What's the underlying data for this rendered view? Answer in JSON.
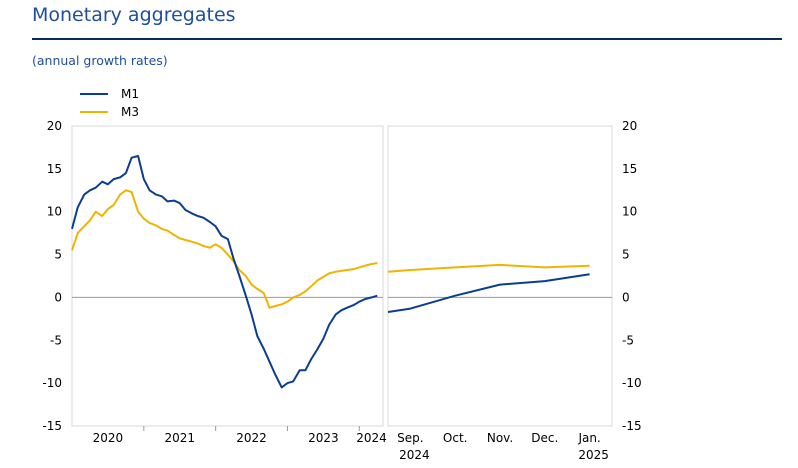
{
  "header": {
    "title": "Monetary aggregates",
    "subtitle": "(annual growth rates)"
  },
  "colors": {
    "M1": "#0b3d91",
    "M3": "#f0b400"
  },
  "chart_data": {
    "type": "line",
    "title": "Monetary aggregates",
    "subtitle": "(annual growth rates)",
    "ylim": [
      -15,
      20
    ],
    "yticks": [
      -15,
      -10,
      -5,
      0,
      5,
      10,
      15,
      20
    ],
    "ytick_labels": [
      "-15",
      "-10",
      "-5",
      "0",
      "5",
      "10",
      "15",
      "20"
    ],
    "legend": {
      "position": "top-left",
      "entries": [
        "M1",
        "M3"
      ]
    },
    "left_panel": {
      "x_range": [
        2020.0,
        2024.33
      ],
      "xtick_labels": [
        {
          "label": "2020",
          "x": 2020.5
        },
        {
          "label": "2021",
          "x": 2021.5
        },
        {
          "label": "2022",
          "x": 2022.5
        },
        {
          "label": "2023",
          "x": 2023.5
        },
        {
          "label": "2024",
          "x": 2024.17
        }
      ],
      "year_boundaries": [
        2021,
        2022,
        2023,
        2024
      ],
      "series": [
        {
          "name": "M1",
          "x": [
            2020.0,
            2020.08,
            2020.17,
            2020.25,
            2020.33,
            2020.42,
            2020.5,
            2020.58,
            2020.67,
            2020.75,
            2020.83,
            2020.92,
            2021.0,
            2021.08,
            2021.17,
            2021.25,
            2021.33,
            2021.42,
            2021.5,
            2021.58,
            2021.67,
            2021.75,
            2021.83,
            2021.92,
            2022.0,
            2022.08,
            2022.17,
            2022.25,
            2022.33,
            2022.42,
            2022.5,
            2022.58,
            2022.67,
            2022.75,
            2022.83,
            2022.92,
            2023.0,
            2023.08,
            2023.17,
            2023.25,
            2023.33,
            2023.42,
            2023.5,
            2023.58,
            2023.67,
            2023.75,
            2023.83,
            2023.92,
            2024.0,
            2024.08,
            2024.17,
            2024.25
          ],
          "values": [
            8.0,
            10.5,
            12.0,
            12.5,
            12.8,
            13.5,
            13.2,
            13.8,
            14.0,
            14.5,
            16.3,
            16.5,
            13.8,
            12.5,
            12.0,
            11.8,
            11.2,
            11.3,
            11.0,
            10.2,
            9.8,
            9.5,
            9.3,
            8.8,
            8.3,
            7.2,
            6.8,
            4.5,
            2.5,
            0.2,
            -2.0,
            -4.5,
            -6.0,
            -7.5,
            -9.0,
            -10.5,
            -10.0,
            -9.8,
            -8.5,
            -8.5,
            -7.2,
            -6.0,
            -4.8,
            -3.2,
            -2.0,
            -1.5,
            -1.2,
            -0.9,
            -0.5,
            -0.2,
            0.0,
            0.2
          ],
          "color": "#0b3d91"
        },
        {
          "name": "M3",
          "x": [
            2020.0,
            2020.08,
            2020.17,
            2020.25,
            2020.33,
            2020.42,
            2020.5,
            2020.58,
            2020.67,
            2020.75,
            2020.83,
            2020.92,
            2021.0,
            2021.08,
            2021.17,
            2021.25,
            2021.33,
            2021.42,
            2021.5,
            2021.58,
            2021.67,
            2021.75,
            2021.83,
            2021.92,
            2022.0,
            2022.08,
            2022.17,
            2022.25,
            2022.33,
            2022.42,
            2022.5,
            2022.58,
            2022.67,
            2022.75,
            2022.83,
            2022.92,
            2023.0,
            2023.08,
            2023.17,
            2023.25,
            2023.33,
            2023.42,
            2023.5,
            2023.58,
            2023.67,
            2023.75,
            2023.83,
            2023.92,
            2024.0,
            2024.08,
            2024.17,
            2024.25
          ],
          "values": [
            5.5,
            7.5,
            8.3,
            9.0,
            10.0,
            9.5,
            10.3,
            10.8,
            12.0,
            12.5,
            12.3,
            10.0,
            9.2,
            8.7,
            8.4,
            8.0,
            7.8,
            7.3,
            6.9,
            6.7,
            6.5,
            6.3,
            6.0,
            5.8,
            6.2,
            5.8,
            5.0,
            4.2,
            3.2,
            2.5,
            1.5,
            1.0,
            0.5,
            -1.2,
            -1.0,
            -0.8,
            -0.5,
            0.0,
            0.3,
            0.7,
            1.3,
            2.0,
            2.4,
            2.8,
            3.0,
            3.1,
            3.2,
            3.3,
            3.5,
            3.7,
            3.9,
            4.0
          ],
          "color": "#f0b400"
        }
      ]
    },
    "right_panel": {
      "categories": [
        "Sep.",
        "Oct.",
        "Nov.",
        "Dec.",
        "Jan."
      ],
      "year_labels": [
        {
          "label": "2024",
          "at": "Sep."
        },
        {
          "label": "2025",
          "at": "Jan."
        }
      ],
      "series": [
        {
          "name": "M1",
          "x": [
            -0.5,
            0,
            1,
            2,
            3,
            4
          ],
          "values": [
            -1.7,
            -1.3,
            0.2,
            1.5,
            1.9,
            2.7
          ],
          "color": "#0b3d91"
        },
        {
          "name": "M3",
          "x": [
            -0.5,
            0,
            1,
            2,
            3,
            4
          ],
          "values": [
            3.0,
            3.2,
            3.5,
            3.8,
            3.5,
            3.7
          ],
          "color": "#f0b400"
        }
      ]
    }
  }
}
